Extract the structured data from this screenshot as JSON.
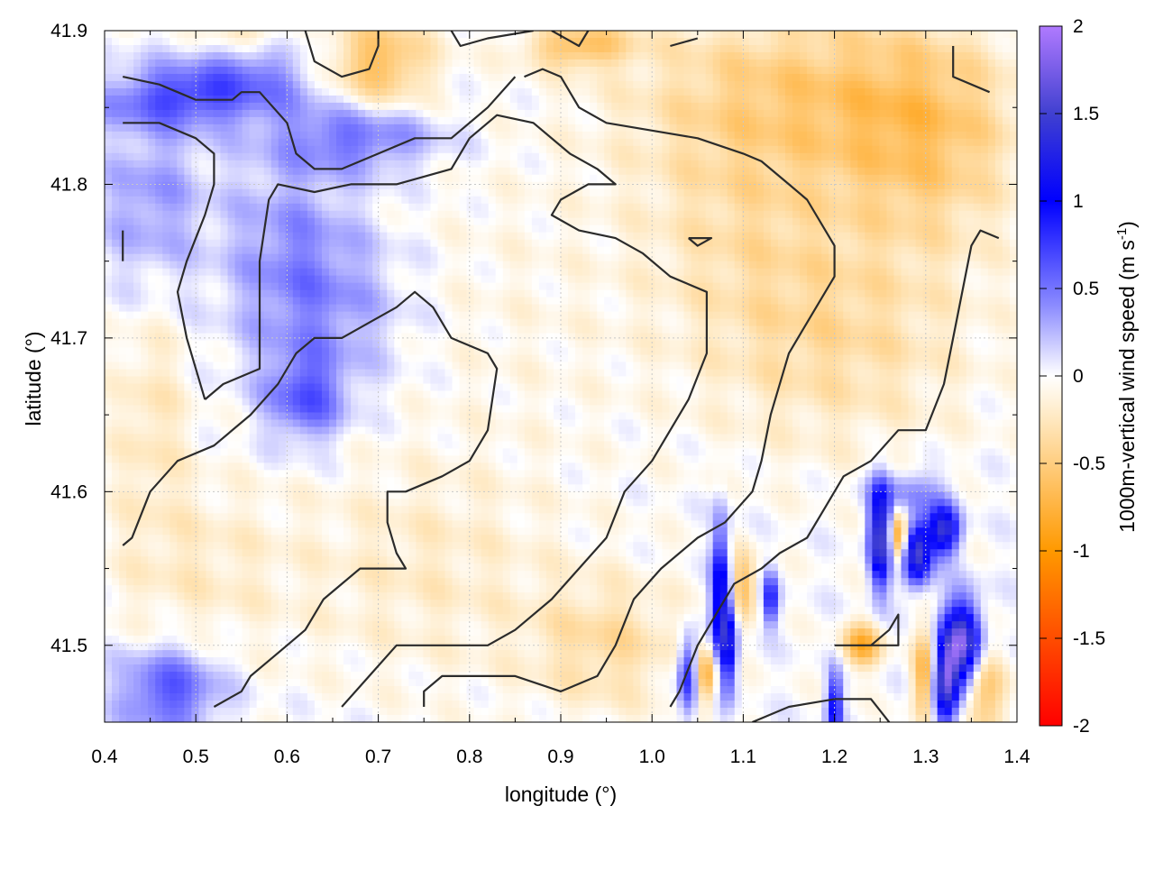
{
  "chart_data": {
    "type": "heatmap",
    "xlabel": "longitude (°)",
    "ylabel": "latitude (°)",
    "xlim": [
      0.4,
      1.4
    ],
    "ylim": [
      41.45,
      41.9
    ],
    "x_ticks": [
      "0.4",
      "0.5",
      "0.6",
      "0.7",
      "0.8",
      "0.9",
      "1.0",
      "1.1",
      "1.2",
      "1.3",
      "1.4"
    ],
    "y_ticks": [
      "41.5",
      "41.6",
      "41.7",
      "41.8",
      "41.9"
    ],
    "grid": true,
    "colorbar": {
      "label_main": "1000m-vertical wind speed (m s",
      "label_sup": "-1",
      "label_end": ")",
      "range": [
        -2,
        2
      ],
      "ticks": [
        "2",
        "1.5",
        "1",
        "0.5",
        "0",
        "-0.5",
        "-1",
        "-1.5",
        "-2"
      ]
    },
    "colors": {
      "stops": [
        {
          "v": -2.0,
          "c": "#ff0000"
        },
        {
          "v": -1.0,
          "c": "#ff9900"
        },
        {
          "v": -0.25,
          "c": "#ffe8c0"
        },
        {
          "v": 0.0,
          "c": "#ffffff"
        },
        {
          "v": 0.4,
          "c": "#8c8cff"
        },
        {
          "v": 1.0,
          "c": "#0000ff"
        },
        {
          "v": 1.5,
          "c": "#4040d0"
        },
        {
          "v": 2.0,
          "c": "#b07aff"
        }
      ],
      "contour": "#2b2b2b",
      "grid": "#c8c8c8"
    },
    "contours": [
      [
        [
          0.42,
          41.87
        ],
        [
          0.46,
          41.865
        ],
        [
          0.5,
          41.855
        ],
        [
          0.54,
          41.855
        ],
        [
          0.55,
          41.86
        ],
        [
          0.57,
          41.86
        ],
        [
          0.6,
          41.84
        ],
        [
          0.61,
          41.82
        ],
        [
          0.63,
          41.81
        ],
        [
          0.66,
          41.81
        ],
        [
          0.7,
          41.82
        ],
        [
          0.74,
          41.83
        ],
        [
          0.78,
          41.83
        ],
        [
          0.82,
          41.85
        ],
        [
          0.85,
          41.87
        ]
      ],
      [
        [
          0.42,
          41.84
        ],
        [
          0.46,
          41.84
        ],
        [
          0.5,
          41.83
        ],
        [
          0.52,
          41.82
        ],
        [
          0.52,
          41.8
        ],
        [
          0.51,
          41.78
        ],
        [
          0.49,
          41.75
        ],
        [
          0.48,
          41.73
        ],
        [
          0.49,
          41.7
        ],
        [
          0.5,
          41.68
        ],
        [
          0.51,
          41.66
        ]
      ],
      [
        [
          0.42,
          41.77
        ],
        [
          0.42,
          41.75
        ]
      ],
      [
        [
          0.51,
          41.66
        ],
        [
          0.53,
          41.67
        ],
        [
          0.57,
          41.68
        ],
        [
          0.57,
          41.7
        ],
        [
          0.57,
          41.75
        ],
        [
          0.58,
          41.79
        ],
        [
          0.59,
          41.8
        ],
        [
          0.63,
          41.795
        ],
        [
          0.67,
          41.8
        ],
        [
          0.72,
          41.8
        ],
        [
          0.78,
          41.81
        ],
        [
          0.8,
          41.83
        ],
        [
          0.83,
          41.845
        ],
        [
          0.87,
          41.84
        ],
        [
          0.91,
          41.82
        ],
        [
          0.94,
          41.81
        ],
        [
          0.96,
          41.8
        ],
        [
          0.93,
          41.8
        ],
        [
          0.9,
          41.79
        ],
        [
          0.89,
          41.78
        ],
        [
          0.92,
          41.77
        ],
        [
          0.96,
          41.765
        ],
        [
          0.99,
          41.755
        ],
        [
          1.02,
          41.74
        ],
        [
          1.06,
          41.73
        ],
        [
          1.06,
          41.69
        ],
        [
          1.04,
          41.66
        ],
        [
          1.02,
          41.64
        ],
        [
          1.0,
          41.62
        ],
        [
          0.97,
          41.6
        ],
        [
          0.95,
          41.57
        ],
        [
          0.92,
          41.55
        ],
        [
          0.89,
          41.53
        ],
        [
          0.85,
          41.51
        ],
        [
          0.82,
          41.5
        ],
        [
          0.79,
          41.5
        ],
        [
          0.75,
          41.5
        ],
        [
          0.72,
          41.5
        ],
        [
          0.69,
          41.48
        ],
        [
          0.66,
          41.46
        ]
      ],
      [
        [
          0.42,
          41.565
        ],
        [
          0.43,
          41.57
        ],
        [
          0.45,
          41.6
        ],
        [
          0.48,
          41.62
        ],
        [
          0.52,
          41.63
        ],
        [
          0.56,
          41.65
        ],
        [
          0.59,
          41.67
        ],
        [
          0.61,
          41.69
        ],
        [
          0.63,
          41.7
        ],
        [
          0.66,
          41.7
        ],
        [
          0.69,
          41.71
        ],
        [
          0.72,
          41.72
        ],
        [
          0.74,
          41.73
        ],
        [
          0.76,
          41.72
        ],
        [
          0.78,
          41.7
        ],
        [
          0.82,
          41.69
        ],
        [
          0.83,
          41.68
        ],
        [
          0.82,
          41.64
        ],
        [
          0.8,
          41.62
        ],
        [
          0.77,
          41.61
        ],
        [
          0.73,
          41.6
        ],
        [
          0.71,
          41.6
        ],
        [
          0.71,
          41.58
        ],
        [
          0.72,
          41.56
        ],
        [
          0.73,
          41.55
        ],
        [
          0.7,
          41.55
        ],
        [
          0.68,
          41.55
        ],
        [
          0.66,
          41.54
        ],
        [
          0.64,
          41.53
        ],
        [
          0.62,
          41.51
        ],
        [
          0.6,
          41.5
        ],
        [
          0.58,
          41.49
        ],
        [
          0.56,
          41.48
        ],
        [
          0.55,
          41.47
        ],
        [
          0.52,
          41.46
        ]
      ],
      [
        [
          0.62,
          41.9
        ],
        [
          0.63,
          41.88
        ],
        [
          0.66,
          41.87
        ],
        [
          0.69,
          41.875
        ],
        [
          0.7,
          41.89
        ],
        [
          0.7,
          41.9
        ]
      ],
      [
        [
          0.78,
          41.9
        ],
        [
          0.79,
          41.89
        ],
        [
          0.82,
          41.895
        ],
        [
          0.87,
          41.9
        ]
      ],
      [
        [
          0.89,
          41.9
        ],
        [
          0.92,
          41.89
        ],
        [
          0.93,
          41.9
        ]
      ],
      [
        [
          1.02,
          41.89
        ],
        [
          1.05,
          41.895
        ]
      ],
      [
        [
          0.75,
          41.46
        ],
        [
          0.75,
          41.47
        ],
        [
          0.77,
          41.48
        ],
        [
          0.8,
          41.48
        ],
        [
          0.85,
          41.48
        ],
        [
          0.9,
          41.47
        ],
        [
          0.94,
          41.48
        ],
        [
          0.96,
          41.5
        ],
        [
          0.98,
          41.53
        ],
        [
          1.01,
          41.55
        ],
        [
          1.05,
          41.57
        ],
        [
          1.08,
          41.58
        ],
        [
          1.11,
          41.6
        ],
        [
          1.12,
          41.62
        ],
        [
          1.13,
          41.65
        ],
        [
          1.14,
          41.67
        ],
        [
          1.15,
          41.69
        ],
        [
          1.17,
          41.71
        ],
        [
          1.2,
          41.74
        ],
        [
          1.2,
          41.76
        ],
        [
          1.17,
          41.79
        ],
        [
          1.15,
          41.8
        ],
        [
          1.12,
          41.815
        ],
        [
          1.1,
          41.82
        ],
        [
          1.05,
          41.83
        ],
        [
          1.0,
          41.835
        ],
        [
          0.95,
          41.84
        ],
        [
          0.92,
          41.85
        ],
        [
          0.9,
          41.87
        ],
        [
          0.88,
          41.875
        ],
        [
          0.86,
          41.87
        ]
      ],
      [
        [
          1.04,
          41.765
        ],
        [
          1.05,
          41.765
        ],
        [
          1.065,
          41.765
        ],
        [
          1.05,
          41.76
        ],
        [
          1.04,
          41.765
        ]
      ],
      [
        [
          1.02,
          41.46
        ],
        [
          1.03,
          41.47
        ],
        [
          1.05,
          41.5
        ],
        [
          1.07,
          41.52
        ],
        [
          1.09,
          41.54
        ],
        [
          1.12,
          41.55
        ],
        [
          1.14,
          41.56
        ],
        [
          1.17,
          41.57
        ],
        [
          1.19,
          41.59
        ],
        [
          1.21,
          41.61
        ],
        [
          1.24,
          41.62
        ],
        [
          1.27,
          41.64
        ],
        [
          1.3,
          41.64
        ],
        [
          1.31,
          41.655
        ],
        [
          1.32,
          41.67
        ],
        [
          1.33,
          41.7
        ],
        [
          1.34,
          41.73
        ],
        [
          1.35,
          41.76
        ],
        [
          1.36,
          41.77
        ],
        [
          1.38,
          41.765
        ]
      ],
      [
        [
          1.33,
          41.89
        ],
        [
          1.33,
          41.87
        ],
        [
          1.37,
          41.86
        ]
      ],
      [
        [
          1.11,
          41.45
        ],
        [
          1.15,
          41.46
        ],
        [
          1.2,
          41.465
        ],
        [
          1.24,
          41.465
        ],
        [
          1.26,
          41.45
        ]
      ],
      [
        [
          1.2,
          41.5
        ],
        [
          1.21,
          41.5
        ],
        [
          1.23,
          41.5
        ],
        [
          1.24,
          41.5
        ],
        [
          1.26,
          41.51
        ],
        [
          1.27,
          41.52
        ],
        [
          1.27,
          41.5
        ],
        [
          1.24,
          41.5
        ]
      ]
    ],
    "features": [
      {
        "x": 0.47,
        "y": 41.855,
        "sx": 0.06,
        "sy": 0.012,
        "a": 0.5
      },
      {
        "x": 0.55,
        "y": 41.87,
        "sx": 0.06,
        "sy": 0.02,
        "a": 0.45
      },
      {
        "x": 0.45,
        "y": 41.79,
        "sx": 0.04,
        "sy": 0.04,
        "a": 0.35
      },
      {
        "x": 0.68,
        "y": 41.83,
        "sx": 0.06,
        "sy": 0.015,
        "a": 0.5
      },
      {
        "x": 0.6,
        "y": 41.76,
        "sx": 0.05,
        "sy": 0.05,
        "a": 0.3
      },
      {
        "x": 0.65,
        "y": 41.72,
        "sx": 0.06,
        "sy": 0.04,
        "a": 0.3
      },
      {
        "x": 0.62,
        "y": 41.66,
        "sx": 0.03,
        "sy": 0.02,
        "a": 0.55
      },
      {
        "x": 0.47,
        "y": 41.47,
        "sx": 0.04,
        "sy": 0.02,
        "a": 0.65
      },
      {
        "x": 0.7,
        "y": 41.88,
        "sx": 0.04,
        "sy": 0.02,
        "a": -0.65
      },
      {
        "x": 0.55,
        "y": 41.9,
        "sx": 0.04,
        "sy": 0.01,
        "a": -0.4
      },
      {
        "x": 0.92,
        "y": 41.89,
        "sx": 0.04,
        "sy": 0.01,
        "a": -0.6
      },
      {
        "x": 1.15,
        "y": 41.86,
        "sx": 0.12,
        "sy": 0.04,
        "a": -0.45
      },
      {
        "x": 1.3,
        "y": 41.83,
        "sx": 0.07,
        "sy": 0.05,
        "a": -0.5
      },
      {
        "x": 1.2,
        "y": 41.7,
        "sx": 0.1,
        "sy": 0.05,
        "a": -0.35
      },
      {
        "x": 1.1,
        "y": 41.78,
        "sx": 0.08,
        "sy": 0.05,
        "a": -0.25
      },
      {
        "x": 0.85,
        "y": 41.72,
        "sx": 0.12,
        "sy": 0.08,
        "a": -0.08
      },
      {
        "x": 0.75,
        "y": 41.55,
        "sx": 0.1,
        "sy": 0.05,
        "a": -0.2
      },
      {
        "x": 0.95,
        "y": 41.5,
        "sx": 0.06,
        "sy": 0.03,
        "a": -0.35
      },
      {
        "x": 0.5,
        "y": 41.55,
        "sx": 0.07,
        "sy": 0.04,
        "a": -0.2
      },
      {
        "x": 0.45,
        "y": 41.65,
        "sx": 0.03,
        "sy": 0.05,
        "a": -0.25
      },
      {
        "x": 1.075,
        "y": 41.53,
        "sx": 0.007,
        "sy": 0.035,
        "a": 1.25
      },
      {
        "x": 1.085,
        "y": 41.5,
        "sx": 0.006,
        "sy": 0.02,
        "a": 1.0
      },
      {
        "x": 1.04,
        "y": 41.48,
        "sx": 0.008,
        "sy": 0.018,
        "a": 1.0
      },
      {
        "x": 1.13,
        "y": 41.53,
        "sx": 0.006,
        "sy": 0.012,
        "a": 0.9
      },
      {
        "x": 1.2,
        "y": 41.46,
        "sx": 0.006,
        "sy": 0.016,
        "a": 1.0
      },
      {
        "x": 1.25,
        "y": 41.57,
        "sx": 0.008,
        "sy": 0.022,
        "a": 1.7
      },
      {
        "x": 1.29,
        "y": 41.56,
        "sx": 0.011,
        "sy": 0.014,
        "a": 1.6
      },
      {
        "x": 1.32,
        "y": 41.575,
        "sx": 0.012,
        "sy": 0.011,
        "a": 1.4
      },
      {
        "x": 1.34,
        "y": 41.5,
        "sx": 0.014,
        "sy": 0.02,
        "a": 1.8
      },
      {
        "x": 1.32,
        "y": 41.475,
        "sx": 0.01,
        "sy": 0.02,
        "a": 1.6
      },
      {
        "x": 1.28,
        "y": 41.6,
        "sx": 0.03,
        "sy": 0.01,
        "a": 0.45
      },
      {
        "x": 1.3,
        "y": 41.48,
        "sx": 0.01,
        "sy": 0.02,
        "a": -0.85
      },
      {
        "x": 1.27,
        "y": 41.57,
        "sx": 0.008,
        "sy": 0.012,
        "a": -0.95
      },
      {
        "x": 1.23,
        "y": 41.5,
        "sx": 0.015,
        "sy": 0.01,
        "a": -0.8
      },
      {
        "x": 1.06,
        "y": 41.48,
        "sx": 0.01,
        "sy": 0.012,
        "a": -0.8
      },
      {
        "x": 1.1,
        "y": 41.54,
        "sx": 0.01,
        "sy": 0.015,
        "a": -0.6
      },
      {
        "x": 1.36,
        "y": 41.47,
        "sx": 0.02,
        "sy": 0.02,
        "a": -0.6
      }
    ]
  }
}
